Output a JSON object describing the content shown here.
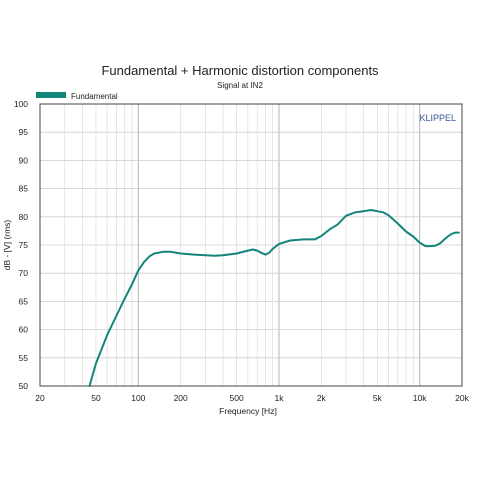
{
  "chart_data": {
    "type": "line",
    "title": "Fundamental + Harmonic distortion components",
    "subtitle": "Signal at IN2",
    "xlabel": "Frequency [Hz]",
    "ylabel": "dB - [V]  (rms)",
    "watermark": "KLIPPEL",
    "x_scale": "log",
    "xlim": [
      20,
      20000
    ],
    "ylim": [
      50,
      100
    ],
    "grid": true,
    "legend_position": "top-left",
    "x_ticks": [
      20,
      50,
      100,
      200,
      500,
      1000,
      2000,
      5000,
      10000,
      20000
    ],
    "x_tick_labels": [
      "20",
      "50",
      "100",
      "200",
      "500",
      "1k",
      "2k",
      "5k",
      "10k",
      "20k"
    ],
    "y_ticks": [
      50,
      55,
      60,
      65,
      70,
      75,
      80,
      85,
      90,
      95,
      100
    ],
    "y_tick_labels": [
      "50",
      "55",
      "60",
      "65",
      "70",
      "75",
      "80",
      "85",
      "90",
      "95",
      "100"
    ],
    "series": [
      {
        "name": "Fundamental",
        "color": "#12857a",
        "x": [
          45,
          50,
          60,
          70,
          80,
          90,
          100,
          110,
          120,
          130,
          150,
          170,
          200,
          250,
          300,
          350,
          400,
          500,
          600,
          650,
          700,
          750,
          800,
          850,
          900,
          1000,
          1200,
          1500,
          1800,
          2000,
          2300,
          2600,
          3000,
          3500,
          4000,
          4500,
          5000,
          5500,
          6000,
          7000,
          8000,
          9000,
          10000,
          11000,
          12000,
          13000,
          14000,
          15000,
          16000,
          17000,
          18000,
          19000
        ],
        "y": [
          50,
          54,
          59,
          62.5,
          65.5,
          68,
          70.5,
          72,
          73,
          73.5,
          73.8,
          73.8,
          73.5,
          73.3,
          73.2,
          73.1,
          73.2,
          73.5,
          74,
          74.2,
          74,
          73.6,
          73.3,
          73.6,
          74.3,
          75.2,
          75.8,
          76,
          76,
          76.6,
          77.8,
          78.6,
          80.2,
          80.8,
          81,
          81.2,
          81,
          80.8,
          80.3,
          78.8,
          77.4,
          76.5,
          75.4,
          74.8,
          74.8,
          74.9,
          75.3,
          76,
          76.6,
          77,
          77.2,
          77.2
        ]
      }
    ]
  }
}
